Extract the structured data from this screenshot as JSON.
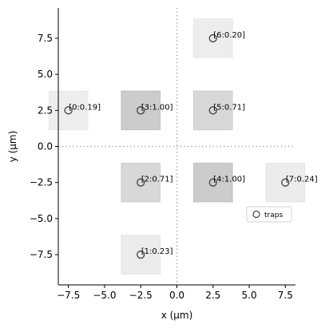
{
  "chart_data": {
    "type": "scatter",
    "title": "",
    "xlabel": "x (μm)",
    "ylabel": "y (μm)",
    "xlim": [
      -8.2,
      8.2
    ],
    "ylim": [
      -9.6,
      9.6
    ],
    "x_ticks": [
      -7.5,
      -5.0,
      -2.5,
      0.0,
      2.5,
      5.0,
      7.5
    ],
    "x_tick_labels": [
      "−7.5",
      "−5.0",
      "−2.5",
      "0.0",
      "2.5",
      "5.0",
      "7.5"
    ],
    "y_ticks": [
      -7.5,
      -5.0,
      -2.5,
      0.0,
      2.5,
      5.0,
      7.5
    ],
    "y_tick_labels": [
      "−7.5",
      "−5.0",
      "−2.5",
      "0.0",
      "2.5",
      "5.0",
      "7.5"
    ],
    "grid": false,
    "reference_lines": {
      "x": 0,
      "y": 0,
      "style": "dotted",
      "color": "#b0b0b0"
    },
    "legend": {
      "position": "lower-right",
      "entries": [
        "traps"
      ]
    },
    "cell_half_size": 1.35,
    "cell_color": "#7f7f7f",
    "marker_color": "#444444",
    "series": [
      {
        "name": "traps",
        "points": [
          {
            "x": -7.5,
            "y": 2.5,
            "label": "[0:0.19]",
            "value": 0.19
          },
          {
            "x": -2.5,
            "y": -7.5,
            "label": "[1:0.23]",
            "value": 0.23
          },
          {
            "x": -2.5,
            "y": -2.5,
            "label": "[2:0.71]",
            "value": 0.71
          },
          {
            "x": -2.5,
            "y": 2.5,
            "label": "[3:1.00]",
            "value": 1.0
          },
          {
            "x": 2.5,
            "y": -2.5,
            "label": "[4:1.00]",
            "value": 1.0
          },
          {
            "x": 2.5,
            "y": 2.5,
            "label": "[5:0.71]",
            "value": 0.71
          },
          {
            "x": 2.5,
            "y": 7.5,
            "label": "[6:0.20]",
            "value": 0.2
          },
          {
            "x": 7.5,
            "y": -2.5,
            "label": "[7:0.24]",
            "value": 0.24
          }
        ]
      }
    ]
  }
}
